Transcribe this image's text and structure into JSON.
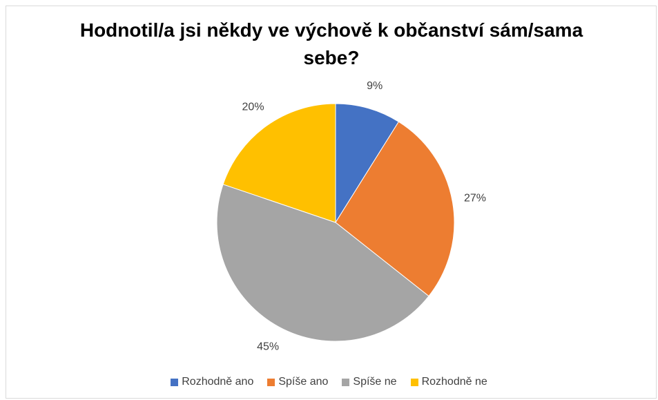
{
  "chart_data": {
    "type": "pie",
    "title": "Hodnotil/a jsi někdy ve výchově k občanství sám/sama sebe?",
    "categories": [
      "Rozhodně ano",
      "Spíše ano",
      "Spíše ne",
      "Rozhodně ne"
    ],
    "values": [
      9,
      27,
      45,
      20
    ],
    "value_labels": [
      "9%",
      "27%",
      "45%",
      "20%"
    ],
    "colors": [
      "#4472c4",
      "#ed7d31",
      "#a5a5a5",
      "#ffc000"
    ],
    "legend": "bottom"
  }
}
